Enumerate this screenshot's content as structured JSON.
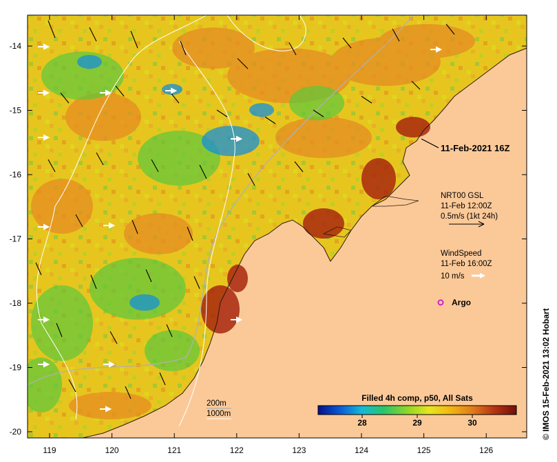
{
  "map": {
    "x_ticks": [
      "119",
      "120",
      "121",
      "122",
      "123",
      "124",
      "125",
      "126"
    ],
    "y_ticks": [
      "-14",
      "-15",
      "-16",
      "-17",
      "-18",
      "-19",
      "-20"
    ],
    "timestamp_label": "11-Feb-2021 16Z",
    "current": {
      "line1": "NRT00 GSL",
      "line2": "11-Feb 12:00Z",
      "line3": "0.5m/s (1kt 24h)"
    },
    "wind": {
      "line1": "WindSpeed",
      "line2": "11-Feb 16:00Z",
      "line3": "10 m/s"
    },
    "argo_label": "Argo",
    "depth_contours": [
      "200m",
      "1000m"
    ],
    "colorbar": {
      "title": "Filled 4h comp, p50, All Sats",
      "ticks": [
        "28",
        "29",
        "30"
      ],
      "tick_values": [
        28,
        29,
        30
      ],
      "range": [
        27.2,
        30.8
      ]
    },
    "credit": "© IMOS 15-Feb-2021 13:02 Hobart",
    "colors": {
      "land": "#fbc998",
      "sst_gradient": [
        "#06108a",
        "#0a5ad6",
        "#16b8d8",
        "#2ac46a",
        "#8ed62a",
        "#e6e61e",
        "#f2b512",
        "#e07a1a",
        "#b43212",
        "#701008"
      ]
    }
  }
}
